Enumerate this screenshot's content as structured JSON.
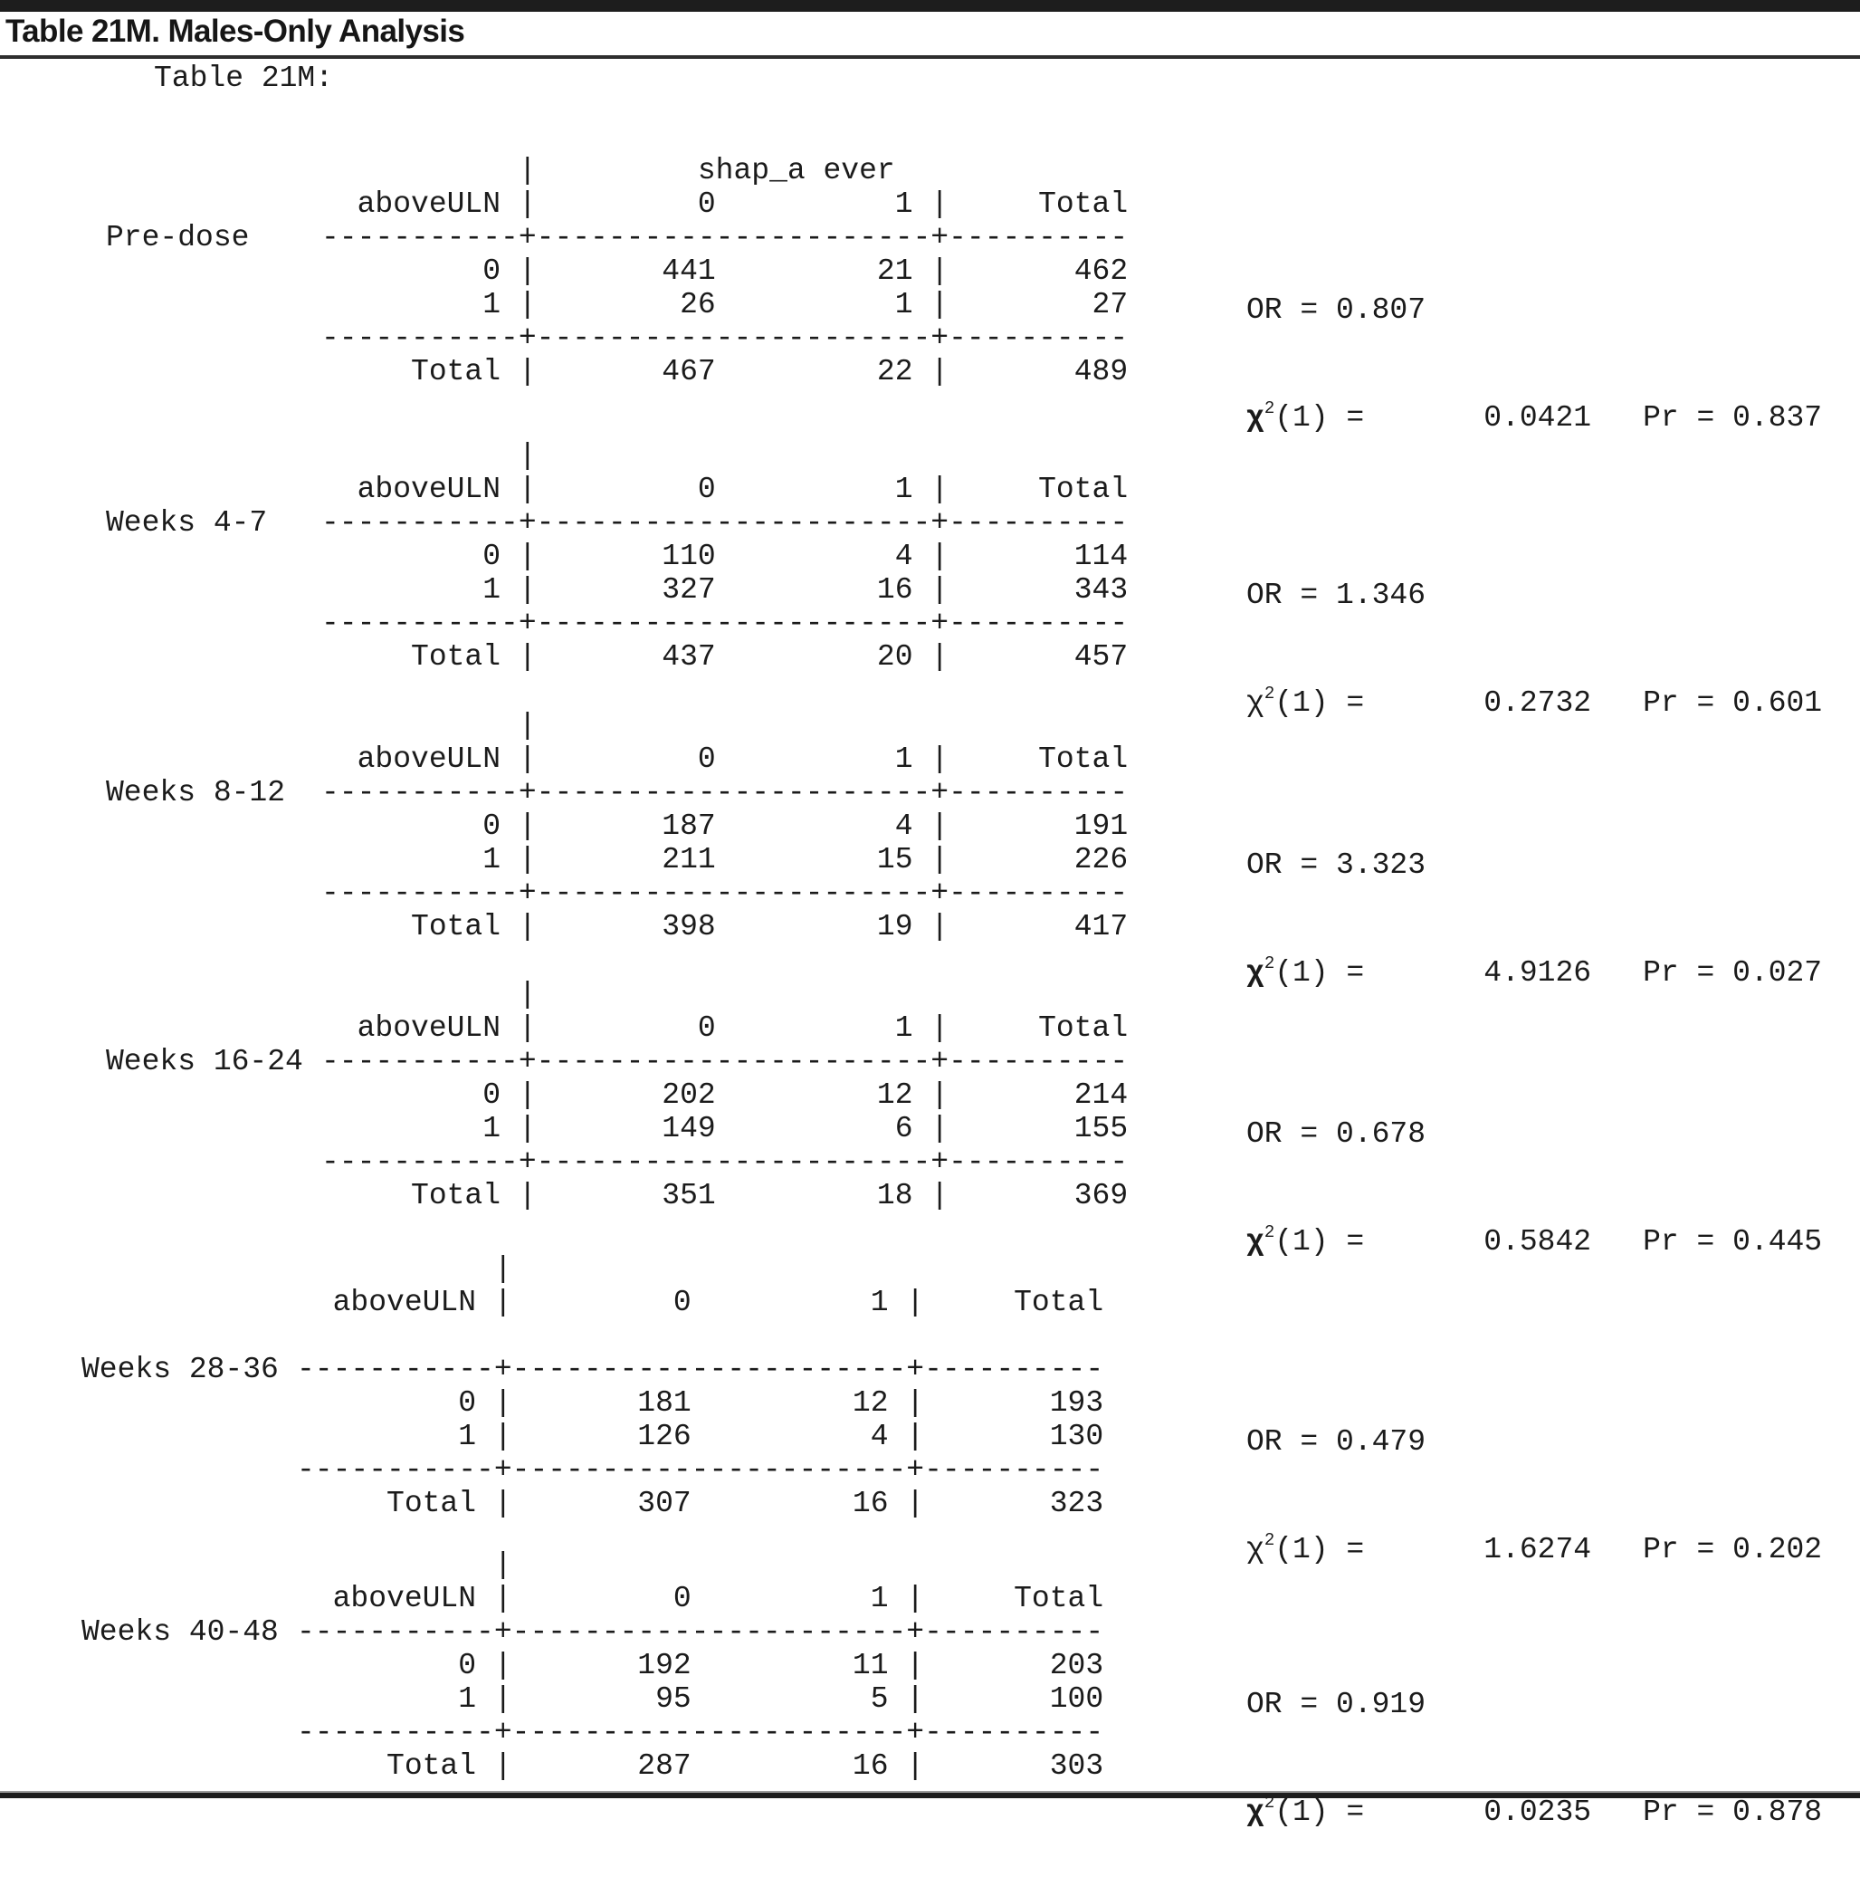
{
  "page": {
    "title": "Table 21M. Males-Only Analysis",
    "subtitle": "Table 21M:"
  },
  "labels": {
    "row_var": "aboveULN",
    "col_var": "shap_a ever",
    "chi": "χ",
    "chi_sup": "2",
    "chi_df": "(1) ="
  },
  "blocks": [
    {
      "label": "Pre-dose",
      "lines": [
        "           |         shap_a ever",
        "  aboveULN |         0          1 |     Total",
        "-----------+----------------------+----------",
        "         0 |       441         21 |       462",
        "         1 |        26          1 |        27",
        "-----------+----------------------+----------",
        "     Total |       467         22 |       489"
      ],
      "stats": {
        "or": "OR = 0.807",
        "chi2": "0.0421",
        "pr": "Pr = 0.837",
        "chi_class": "chi-sym chi-bold"
      }
    },
    {
      "label": "Weeks 4-7",
      "lines": [
        "           |",
        "  aboveULN |         0          1 |     Total",
        "-----------+----------------------+----------",
        "         0 |       110          4 |       114",
        "         1 |       327         16 |       343",
        "-----------+----------------------+----------",
        "     Total |       437         20 |       457"
      ],
      "stats": {
        "or": "OR = 1.346",
        "chi2": "0.2732",
        "pr": "Pr = 0.601",
        "chi_class": "chi-sym"
      }
    },
    {
      "label": "Weeks 8-12",
      "lines": [
        "           |",
        "  aboveULN |         0          1 |     Total",
        "-----------+----------------------+----------",
        "         0 |       187          4 |       191",
        "         1 |       211         15 |       226",
        "-----------+----------------------+----------",
        "     Total |       398         19 |       417"
      ],
      "stats": {
        "or": "OR = 3.323",
        "chi2": "4.9126",
        "pr": "Pr = 0.027",
        "chi_class": "chi-sym chi-bold"
      }
    },
    {
      "label": "Weeks 16-24",
      "lines": [
        "           |",
        "  aboveULN |         0          1 |     Total",
        "-----------+----------------------+----------",
        "         0 |       202         12 |       214",
        "         1 |       149          6 |       155",
        "-----------+----------------------+----------",
        "     Total |       351         18 |       369"
      ],
      "stats": {
        "or": "OR = 0.678",
        "chi2": "0.5842",
        "pr": "Pr = 0.445",
        "chi_class": "chi-sym chi-bold"
      }
    },
    {
      "label": "Weeks 28-36",
      "lines": [
        "           |",
        "  aboveULN |         0          1 |     Total",
        "",
        "-----------+----------------------+----------",
        "         0 |       181         12 |       193",
        "         1 |       126          4 |       130",
        "-----------+----------------------+----------",
        "     Total |       307         16 |       323"
      ],
      "stats": {
        "or": "OR = 0.479",
        "chi2": "1.6274",
        "pr": "Pr = 0.202",
        "chi_class": "chi-sym"
      }
    },
    {
      "label": "Weeks 40-48",
      "lines": [
        "           |",
        "  aboveULN |         0          1 |     Total",
        "-----------+----------------------+----------",
        "         0 |       192         11 |       203",
        "         1 |        95          5 |       100",
        "-----------+----------------------+----------",
        "     Total |       287         16 |       303"
      ],
      "stats": {
        "or": "OR = 0.919",
        "chi2": "0.0235",
        "pr": "Pr = 0.878",
        "chi_class": "chi-sym chi-bold"
      }
    }
  ]
}
